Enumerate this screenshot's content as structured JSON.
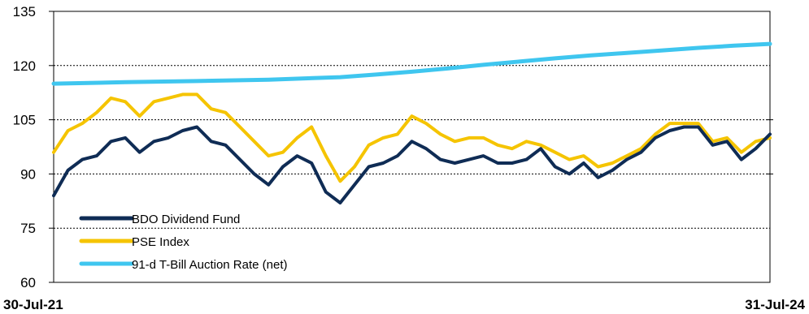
{
  "chart_data": {
    "type": "line",
    "title": "",
    "xlabel": "",
    "ylabel": "",
    "x_tick_labels": [
      "30-Jul-21",
      "31-Jul-24"
    ],
    "ylim": [
      60,
      135
    ],
    "yticks": [
      60,
      75,
      90,
      105,
      120,
      135
    ],
    "grid": "horizontal, dashed",
    "legend_position": "bottom-left",
    "colors": {
      "BDO Dividend Fund": "#0f2c55",
      "PSE Index": "#f5c400",
      "91-d T-Bill Auction Rate (net)": "#3fc6ef"
    },
    "series": [
      {
        "name": "BDO Dividend Fund",
        "x_fraction": [
          0,
          0.02,
          0.04,
          0.06,
          0.08,
          0.1,
          0.12,
          0.14,
          0.16,
          0.18,
          0.2,
          0.22,
          0.24,
          0.26,
          0.28,
          0.3,
          0.32,
          0.34,
          0.36,
          0.38,
          0.4,
          0.42,
          0.44,
          0.46,
          0.48,
          0.5,
          0.52,
          0.54,
          0.56,
          0.58,
          0.6,
          0.62,
          0.64,
          0.66,
          0.68,
          0.7,
          0.72,
          0.74,
          0.76,
          0.78,
          0.8,
          0.82,
          0.84,
          0.86,
          0.88,
          0.9,
          0.92,
          0.94,
          0.96,
          0.98,
          1.0
        ],
        "values": [
          84,
          91,
          94,
          95,
          99,
          100,
          96,
          99,
          100,
          102,
          103,
          99,
          98,
          94,
          90,
          87,
          92,
          95,
          93,
          85,
          82,
          87,
          92,
          93,
          95,
          99,
          97,
          94,
          93,
          94,
          95,
          93,
          93,
          94,
          97,
          92,
          90,
          93,
          89,
          91,
          94,
          96,
          100,
          102,
          103,
          103,
          98,
          99,
          94,
          97,
          101
        ]
      },
      {
        "name": "PSE Index",
        "x_fraction": [
          0,
          0.02,
          0.04,
          0.06,
          0.08,
          0.1,
          0.12,
          0.14,
          0.16,
          0.18,
          0.2,
          0.22,
          0.24,
          0.26,
          0.28,
          0.3,
          0.32,
          0.34,
          0.36,
          0.38,
          0.4,
          0.42,
          0.44,
          0.46,
          0.48,
          0.5,
          0.52,
          0.54,
          0.56,
          0.58,
          0.6,
          0.62,
          0.64,
          0.66,
          0.68,
          0.7,
          0.72,
          0.74,
          0.76,
          0.78,
          0.8,
          0.82,
          0.84,
          0.86,
          0.88,
          0.9,
          0.92,
          0.94,
          0.96,
          0.98,
          1.0
        ],
        "values": [
          96,
          102,
          104,
          107,
          111,
          110,
          106,
          110,
          111,
          112,
          112,
          108,
          107,
          103,
          99,
          95,
          96,
          100,
          103,
          95,
          88,
          92,
          98,
          100,
          101,
          106,
          104,
          101,
          99,
          100,
          100,
          98,
          97,
          99,
          98,
          96,
          94,
          95,
          92,
          93,
          95,
          97,
          101,
          104,
          104,
          104,
          99,
          100,
          96,
          99,
          100
        ]
      },
      {
        "name": "91-d T-Bill Auction Rate (net)",
        "x_fraction": [
          0,
          0.1,
          0.2,
          0.3,
          0.4,
          0.45,
          0.5,
          0.55,
          0.6,
          0.65,
          0.7,
          0.75,
          0.8,
          0.85,
          0.9,
          0.95,
          1.0
        ],
        "values": [
          115,
          115.4,
          115.7,
          116.1,
          116.8,
          117.5,
          118.3,
          119.2,
          120.2,
          121.1,
          122.0,
          122.8,
          123.5,
          124.2,
          124.9,
          125.5,
          126.0
        ]
      }
    ]
  }
}
